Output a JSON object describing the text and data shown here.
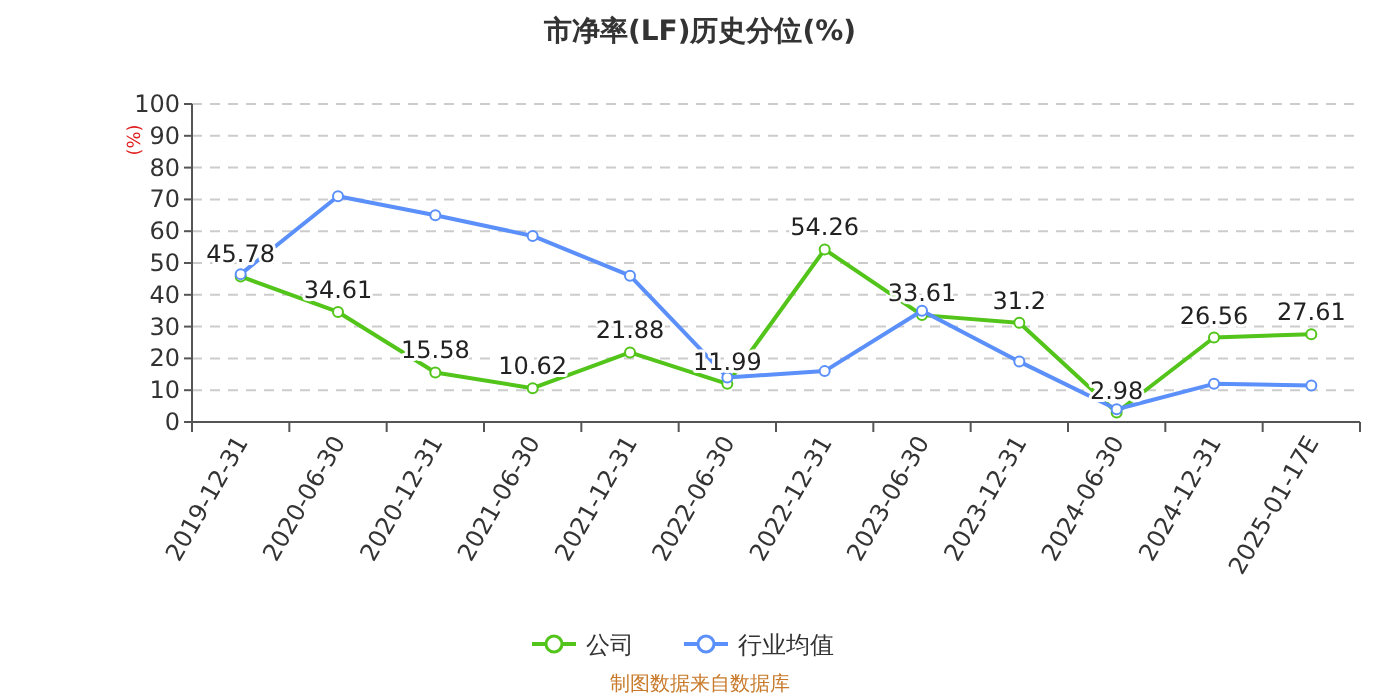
{
  "chart_data": {
    "type": "line",
    "title": "市净率(LF)历史分位(%)",
    "ylabel": "(%)",
    "categories": [
      "2019-12-31",
      "2020-06-30",
      "2020-12-31",
      "2021-06-30",
      "2021-12-31",
      "2022-06-30",
      "2022-12-31",
      "2023-06-30",
      "2023-12-31",
      "2024-06-30",
      "2024-12-31",
      "2025-01-17E"
    ],
    "series": [
      {
        "name": "公司",
        "color": "#52c41a",
        "values": [
          45.78,
          34.61,
          15.58,
          10.62,
          21.88,
          11.99,
          54.26,
          33.61,
          31.2,
          2.98,
          26.56,
          27.61
        ],
        "data_labels": true
      },
      {
        "name": "行业均值",
        "color": "#5b8ff9",
        "values": [
          46.5,
          71,
          65,
          58.5,
          46,
          14,
          16,
          35,
          19,
          4,
          12,
          11.5
        ]
      }
    ],
    "ylim": [
      0,
      100
    ],
    "yticks": [
      0,
      10,
      20,
      30,
      40,
      50,
      60,
      70,
      80,
      90,
      100
    ],
    "grid": "y",
    "legend": "bottom",
    "marker": "circle",
    "annotations": [
      "制图数据来自数据库"
    ]
  }
}
